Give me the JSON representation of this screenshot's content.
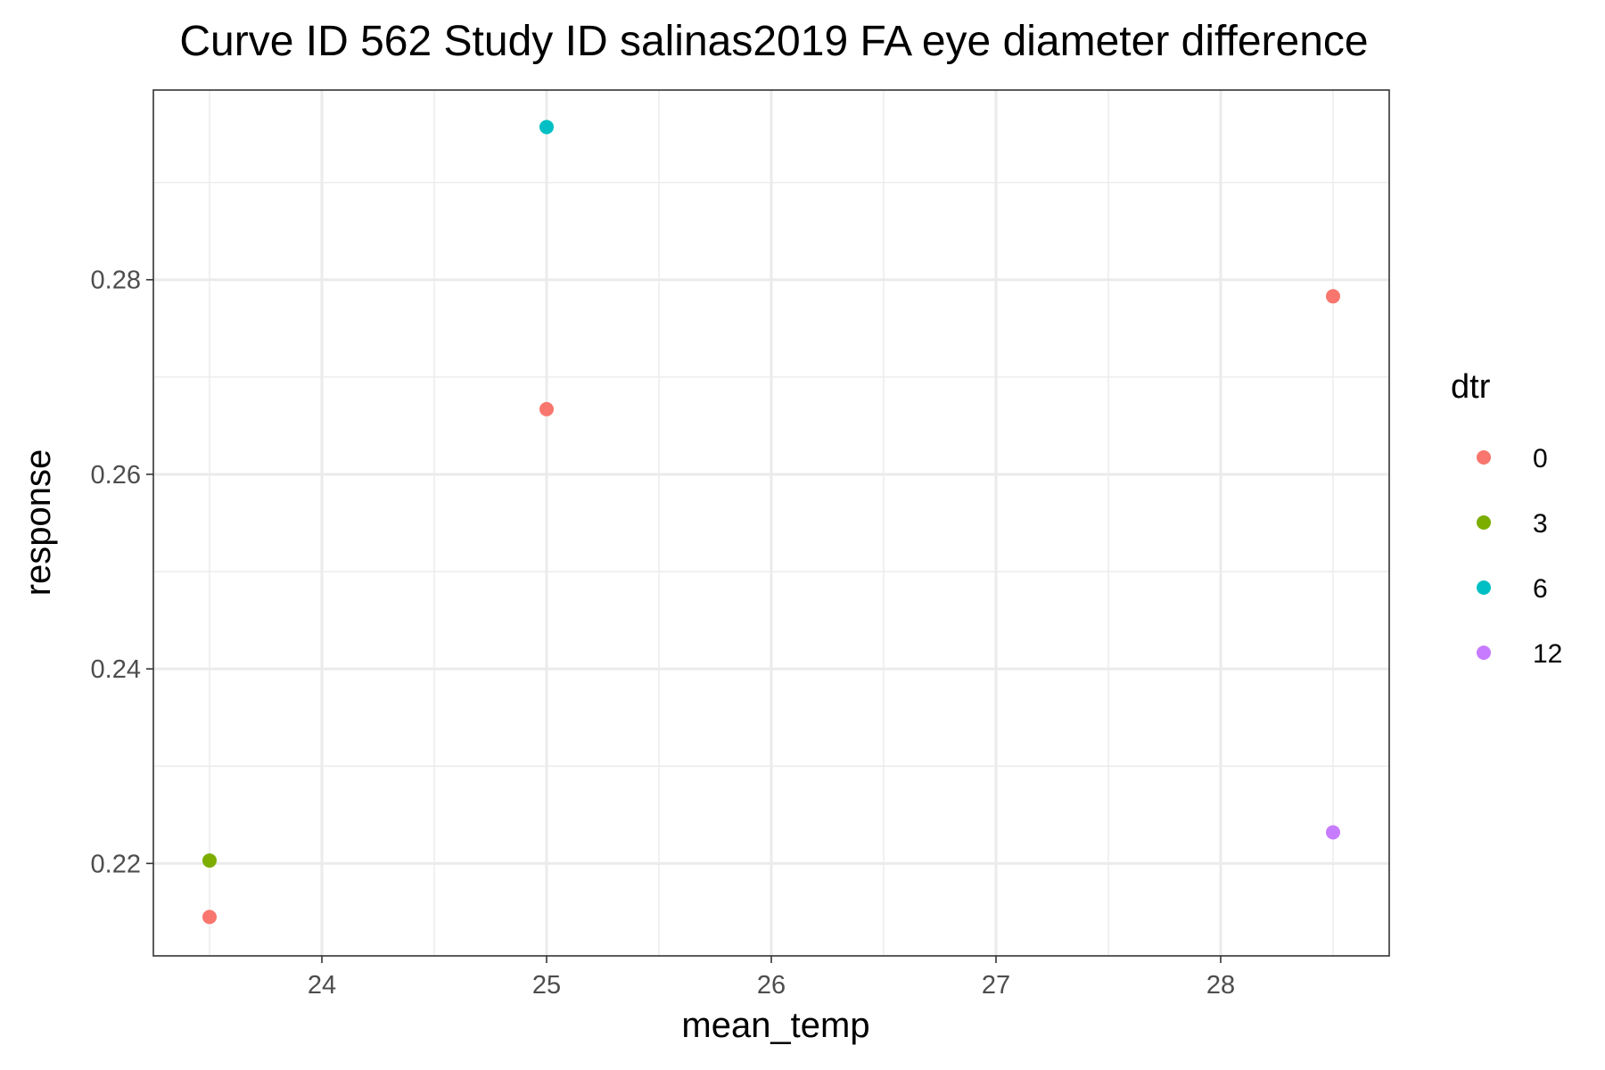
{
  "chart_data": {
    "type": "scatter",
    "title": "Curve ID 562 Study ID salinas2019 FA eye diameter difference",
    "xlabel": "mean_temp",
    "ylabel": "response",
    "xlim": [
      23.25,
      28.75
    ],
    "ylim": [
      0.2105,
      0.2995
    ],
    "x_ticks": [
      24,
      25,
      26,
      27,
      28
    ],
    "x_tick_labels": [
      "24",
      "25",
      "26",
      "27",
      "28"
    ],
    "y_ticks": [
      0.22,
      0.24,
      0.26,
      0.28
    ],
    "y_tick_labels": [
      "0.22",
      "0.24",
      "0.26",
      "0.28"
    ],
    "grid": true,
    "legend": {
      "title": "dtr",
      "placement": "right",
      "entries": [
        {
          "label": "0",
          "color": "#F8766D"
        },
        {
          "label": "3",
          "color": "#7CAE00"
        },
        {
          "label": "6",
          "color": "#00BFC4"
        },
        {
          "label": "12",
          "color": "#C77CFF"
        }
      ]
    },
    "series": [
      {
        "name": "0",
        "color": "#F8766D",
        "points": [
          {
            "x": 23.5,
            "y": 0.2145
          },
          {
            "x": 25.0,
            "y": 0.2667
          },
          {
            "x": 28.5,
            "y": 0.2783
          }
        ]
      },
      {
        "name": "3",
        "color": "#7CAE00",
        "points": [
          {
            "x": 23.5,
            "y": 0.2203
          }
        ]
      },
      {
        "name": "6",
        "color": "#00BFC4",
        "points": [
          {
            "x": 25.0,
            "y": 0.2957
          }
        ]
      },
      {
        "name": "12",
        "color": "#C77CFF",
        "points": [
          {
            "x": 28.5,
            "y": 0.2232
          }
        ]
      }
    ]
  }
}
